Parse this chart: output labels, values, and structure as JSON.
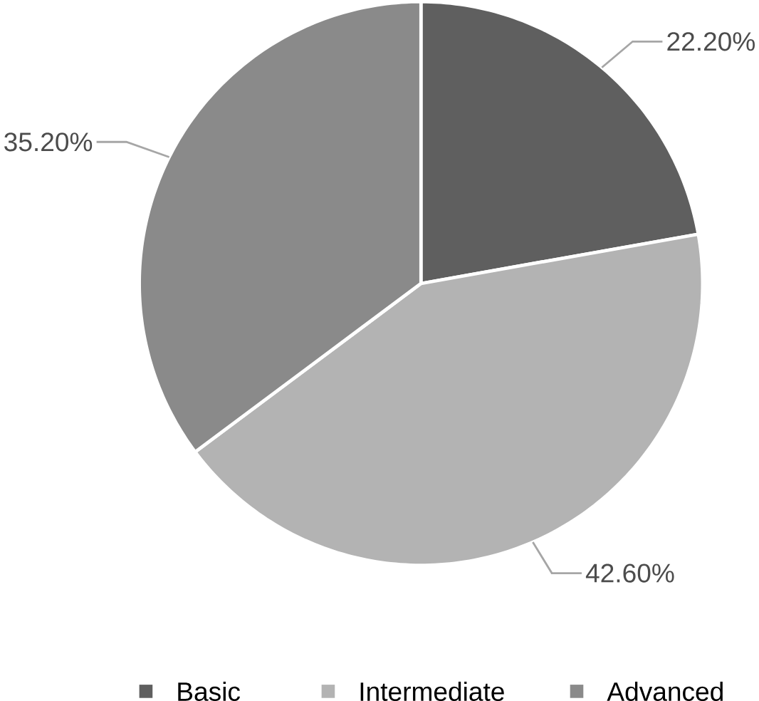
{
  "chart_data": {
    "type": "pie",
    "categories": [
      "Basic",
      "Intermediate",
      "Advanced"
    ],
    "values": [
      22.2,
      42.6,
      35.2
    ],
    "colors": [
      "#5f5f5f",
      "#b3b3b3",
      "#8a8a8a"
    ],
    "value_labels": [
      "22.20%",
      "42.60%",
      "35.20%"
    ],
    "legend": "bottom"
  }
}
